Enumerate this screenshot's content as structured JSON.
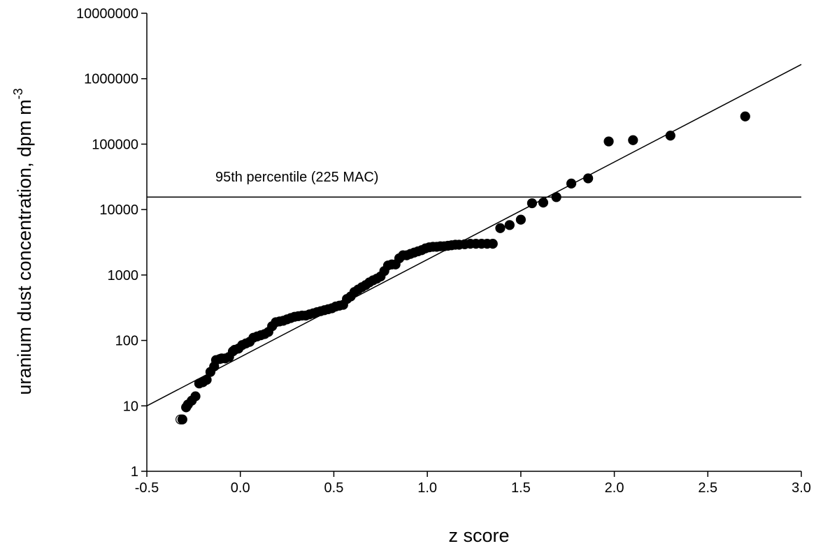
{
  "chart_data": {
    "type": "scatter",
    "title": "",
    "xlabel": "z score",
    "ylabel": "uranium dust concentration, dpm m",
    "ylabel_superscript": "-3",
    "x_scale": "linear",
    "y_scale": "log",
    "xlim": [
      -0.5,
      3.0
    ],
    "ylim": [
      1,
      10000000
    ],
    "x_ticks": [
      -0.5,
      0.0,
      0.5,
      1.0,
      1.5,
      2.0,
      2.5,
      3.0
    ],
    "x_tick_labels": [
      "-0.5",
      "0.0",
      "0.5",
      "1.0",
      "1.5",
      "2.0",
      "2.5",
      "3.0"
    ],
    "y_ticks": [
      1,
      10,
      100,
      1000,
      10000,
      100000,
      1000000,
      10000000
    ],
    "y_tick_labels": [
      "1",
      "10",
      "100",
      "1000",
      "10000",
      "100000",
      "1000000",
      "10000000"
    ],
    "grid": false,
    "legend": false,
    "reference_line": {
      "y": 15500,
      "label": "95th percentile (225 MAC)"
    },
    "fit_line": {
      "x": [
        -0.5,
        3.0
      ],
      "y": [
        10,
        1650000
      ]
    },
    "series": [
      {
        "marker": "open-circle",
        "x": [
          -0.32
        ],
        "y": [
          6.2
        ]
      },
      {
        "marker": "filled-circle",
        "x": [
          -0.31,
          -0.29,
          -0.28,
          -0.26,
          -0.24,
          -0.22,
          -0.2,
          -0.18,
          -0.16,
          -0.14,
          -0.13,
          -0.11,
          -0.1,
          -0.08,
          -0.06,
          -0.04,
          -0.03,
          -0.01,
          0.01,
          0.03,
          0.05,
          0.07,
          0.09,
          0.11,
          0.13,
          0.15,
          0.17,
          0.19,
          0.21,
          0.23,
          0.25,
          0.27,
          0.29,
          0.31,
          0.33,
          0.35,
          0.37,
          0.39,
          0.41,
          0.43,
          0.45,
          0.47,
          0.49,
          0.51,
          0.53,
          0.55,
          0.57,
          0.59,
          0.61,
          0.63,
          0.65,
          0.67,
          0.69,
          0.71,
          0.73,
          0.75,
          0.77,
          0.79,
          0.81,
          0.83,
          0.85,
          0.87,
          0.89,
          0.91,
          0.93,
          0.95,
          0.97,
          0.99,
          1.01,
          1.03,
          1.05,
          1.07,
          1.09,
          1.11,
          1.13,
          1.15,
          1.17,
          1.2,
          1.23,
          1.26,
          1.29,
          1.32,
          1.35,
          1.39,
          1.44,
          1.5,
          1.56,
          1.62,
          1.69,
          1.77,
          1.86,
          1.97,
          2.1,
          2.3,
          2.7
        ],
        "y": [
          6.2,
          9.5,
          10.5,
          12,
          14,
          22,
          23,
          25,
          33,
          40,
          50,
          52,
          53,
          53,
          56,
          68,
          72,
          75,
          85,
          90,
          95,
          110,
          115,
          120,
          125,
          135,
          165,
          190,
          195,
          200,
          210,
          220,
          230,
          235,
          240,
          240,
          250,
          260,
          270,
          280,
          290,
          300,
          310,
          330,
          340,
          350,
          430,
          470,
          550,
          600,
          650,
          700,
          770,
          830,
          880,
          950,
          1150,
          1400,
          1450,
          1450,
          1800,
          2000,
          2000,
          2100,
          2200,
          2300,
          2400,
          2550,
          2650,
          2700,
          2700,
          2750,
          2750,
          2800,
          2850,
          2900,
          2900,
          2950,
          3000,
          3000,
          3000,
          3000,
          3000,
          5200,
          5800,
          7000,
          12500,
          12800,
          15500,
          25000,
          30000,
          110000,
          115000,
          135000,
          265000
        ]
      }
    ]
  }
}
